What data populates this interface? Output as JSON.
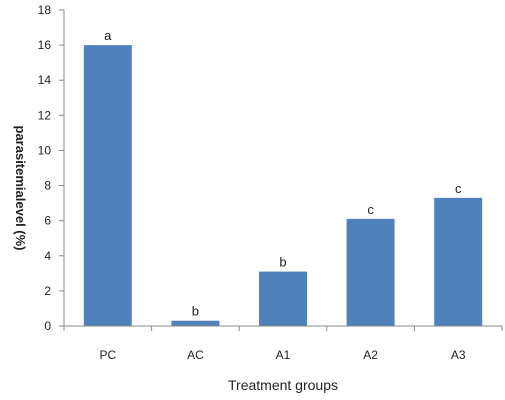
{
  "chart_data": {
    "type": "bar",
    "categories": [
      "PC",
      "AC",
      "A1",
      "A2",
      "A3"
    ],
    "values": [
      16.0,
      0.3,
      3.1,
      6.1,
      7.3
    ],
    "data_labels": [
      "a",
      "b",
      "b",
      "c",
      "c"
    ],
    "xlabel": "Treatment groups",
    "ylabel": "parasitemialevel (%)",
    "ylim": [
      0,
      18
    ],
    "yticks": [
      0,
      2,
      4,
      6,
      8,
      10,
      12,
      14,
      16,
      18
    ],
    "grid": false,
    "bar_color": "#4f81bd"
  }
}
